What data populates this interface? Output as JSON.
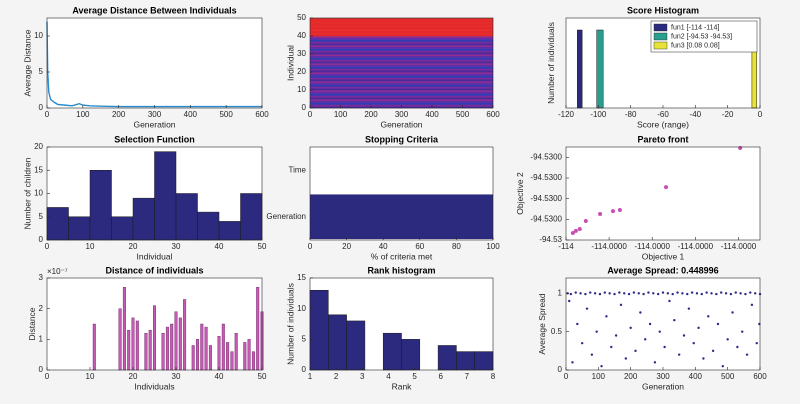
{
  "chart_data": [
    {
      "type": "line",
      "title": "Average Distance Between Individuals",
      "xlabel": "Generation",
      "ylabel": "Average Distance",
      "color": "#2a8ad0",
      "x": [
        0,
        2,
        5,
        10,
        20,
        30,
        50,
        70,
        90,
        100,
        120,
        150,
        200,
        300,
        400,
        500,
        600
      ],
      "values": [
        12,
        5,
        2.2,
        1.2,
        0.8,
        0.5,
        0.4,
        0.3,
        0.6,
        0.4,
        0.3,
        0.25,
        0.2,
        0.2,
        0.2,
        0.2,
        0.2
      ],
      "xlim": [
        0,
        600
      ],
      "xticks": [
        0,
        100,
        200,
        300,
        400,
        500,
        600
      ],
      "ylim": [
        0,
        12.5
      ],
      "yticks": [
        0,
        5,
        10
      ]
    },
    {
      "type": "heatmap",
      "xlabel": "Generation",
      "ylabel": "Individual",
      "bands": [
        {
          "range": [
            0,
            40
          ],
          "colors": [
            "#4b2a9e",
            "#7b2c9a",
            "#2f3db4",
            "#5a2fa8",
            "#8a2f96"
          ]
        },
        {
          "range": [
            40,
            50
          ],
          "colors": [
            "#e8262a",
            "#e2302c"
          ]
        }
      ],
      "xlim": [
        0,
        600
      ],
      "xticks": [
        0,
        100,
        200,
        300,
        400,
        500,
        600
      ],
      "ylim": [
        0,
        50
      ],
      "yticks": [
        0,
        10,
        20,
        30,
        40,
        50
      ]
    },
    {
      "type": "histogram",
      "title": "Score Histogram",
      "xlabel": "Score (range)",
      "ylabel": "Number of individuals",
      "legend": "northeast",
      "series": [
        {
          "name": "fun1 [-114  -114]",
          "color": "#2c2a7e",
          "bins": [
            -113,
            -110
          ],
          "values": [
            13
          ]
        },
        {
          "name": "fun2 [-94.53  -94.53]",
          "color": "#2a9d8f",
          "bins": [
            -101,
            -97
          ],
          "values": [
            13
          ]
        },
        {
          "name": "fun3 [0.08  0.08]",
          "color": "#e6e23a",
          "bins": [
            -5,
            -2
          ],
          "values": [
            13
          ]
        }
      ],
      "xlim": [
        -120,
        0
      ],
      "xticks": [
        -120,
        -100,
        -80,
        -60,
        -40,
        -20,
        0
      ],
      "ylim": [
        0,
        15
      ]
    },
    {
      "type": "histogram",
      "title": "Selection Function",
      "xlabel": "Individual",
      "ylabel": "Number of children",
      "series": [
        {
          "color": "#2c2a7e",
          "bins": [
            0,
            5,
            10,
            15,
            20,
            25,
            30,
            35,
            40,
            45,
            50
          ],
          "values": [
            7,
            5,
            15,
            5,
            9,
            19,
            10,
            6,
            4,
            10
          ]
        }
      ],
      "xlim": [
        0,
        50
      ],
      "xticks": [
        0,
        10,
        20,
        30,
        40,
        50
      ],
      "ylim": [
        0,
        20
      ],
      "yticks": [
        0,
        5,
        10,
        15,
        20
      ]
    },
    {
      "type": "barh",
      "title": "Stopping Criteria",
      "xlabel": "% of criteria met",
      "color": "#2c2a7e",
      "categories": [
        "Generation",
        "Time"
      ],
      "values": [
        100,
        0
      ],
      "xlim": [
        0,
        100
      ],
      "xticks": [
        0,
        20,
        40,
        60,
        80,
        100
      ]
    },
    {
      "type": "scatter",
      "title": "Pareto front",
      "xlabel": "Objective 1",
      "ylabel": "Objective 2",
      "color": "#c84fb3",
      "size": 2,
      "x": [
        -113.9999984,
        -113.9999977,
        -113.9999968,
        -113.9999954,
        -113.9999921,
        -113.9999891,
        -113.9999875,
        -113.9999768,
        -113.9999596
      ],
      "values": [
        -94.5299966,
        -94.5299956,
        -94.5299947,
        -94.5299908,
        -94.5299874,
        -94.529986,
        -94.5299855,
        -94.5299744,
        -94.5299555
      ],
      "xlim": [
        -114,
        -113.999955
      ],
      "xticks": [
        -114,
        {
          "value": -113.99999,
          "label": "-114.0000"
        },
        {
          "value": -113.99998,
          "label": "-114.0000"
        },
        {
          "value": -113.99997,
          "label": "-114.0000"
        },
        {
          "value": -113.99996,
          "label": "-114.0000"
        }
      ],
      "ylim": [
        -94.53,
        -94.529955
      ],
      "yticks": [
        -94.53,
        {
          "value": -94.52999,
          "label": "-94.5300"
        },
        {
          "value": -94.52998,
          "label": "-94.5300"
        },
        {
          "value": -94.52997,
          "label": "-94.5300"
        },
        {
          "value": -94.52996,
          "label": "-94.5300"
        }
      ]
    },
    {
      "type": "bar",
      "title": "Distance of individuals",
      "xlabel": "Individuals",
      "ylabel": "Distance",
      "y_exponent_label": "×10⁻⁷",
      "color": "#c45ab3",
      "x": [
        11,
        17,
        18,
        19,
        20,
        21,
        23,
        24,
        25,
        27,
        28,
        29,
        30,
        31,
        32,
        34,
        35,
        36,
        37,
        38,
        40,
        41,
        42,
        43,
        44,
        46,
        47,
        48,
        49,
        50
      ],
      "values": [
        1.5e-07,
        2e-07,
        2.7e-07,
        1.3e-07,
        1.7e-07,
        1.6e-07,
        1.2e-07,
        1.3e-07,
        2.1e-07,
        1.2e-07,
        1.4e-07,
        1.5e-07,
        1.9e-07,
        1.7e-07,
        2.3e-07,
        8e-08,
        1e-07,
        1.5e-07,
        1.4e-07,
        8e-08,
        1.1e-07,
        1.5e-07,
        9e-08,
        6e-08,
        1.2e-07,
        9e-08,
        1e-07,
        6e-08,
        2.7e-07,
        1.9e-07
      ],
      "xlim": [
        0,
        50
      ],
      "xticks": [
        0,
        10,
        20,
        30,
        40,
        50
      ],
      "ylim": [
        0,
        3e-07
      ],
      "yticks": [
        0,
        {
          "value": 1e-07,
          "label": "1"
        },
        {
          "value": 2e-07,
          "label": "2"
        },
        {
          "value": 3e-07,
          "label": "3"
        }
      ]
    },
    {
      "type": "histogram",
      "title": "Rank histogram",
      "xlabel": "Rank",
      "ylabel": "Number of individuals",
      "series": [
        {
          "color": "#2c2a7e",
          "bins": [
            1,
            1.7,
            2.4,
            3.1,
            3.8,
            4.5,
            5.2,
            5.9,
            6.6,
            7.3,
            8
          ],
          "values": [
            13,
            9,
            8,
            0,
            6,
            5,
            0,
            4,
            3,
            3
          ]
        }
      ],
      "xlim": [
        1,
        8
      ],
      "xticks": [
        1,
        2,
        3,
        4,
        5,
        6,
        7,
        8
      ],
      "ylim": [
        0,
        15
      ],
      "yticks": [
        0,
        5,
        10,
        15
      ]
    },
    {
      "type": "scatter",
      "title": "Average Spread: 0.448996",
      "xlabel": "Generation",
      "ylabel": "Average Spread",
      "color": "#2b2a8a",
      "size": 1.2,
      "x": [
        5,
        15,
        30,
        45,
        60,
        75,
        90,
        105,
        120,
        135,
        150,
        165,
        180,
        195,
        210,
        225,
        240,
        255,
        270,
        285,
        300,
        315,
        330,
        345,
        360,
        375,
        390,
        405,
        420,
        435,
        450,
        465,
        480,
        495,
        510,
        525,
        540,
        555,
        570,
        585,
        600,
        10,
        20,
        35,
        50,
        65,
        80,
        95,
        110,
        125,
        140,
        155,
        170,
        185,
        200,
        215,
        230,
        245,
        260,
        275,
        290,
        305,
        320,
        335,
        350,
        365,
        380,
        395,
        410,
        425,
        440,
        455,
        470,
        485,
        500,
        515,
        530,
        545,
        560,
        575,
        590,
        598
      ],
      "values": [
        1.0,
        0.99,
        1.01,
        1.0,
        0.99,
        1.01,
        1.0,
        0.99,
        1.01,
        1.0,
        0.99,
        1.01,
        1.0,
        0.99,
        1.01,
        1.0,
        0.99,
        1.01,
        1.0,
        0.99,
        1.01,
        1.0,
        0.99,
        1.01,
        1.0,
        0.99,
        1.01,
        1.0,
        0.99,
        1.01,
        1.0,
        0.99,
        1.01,
        1.0,
        0.99,
        1.01,
        1.0,
        0.99,
        1.01,
        1.0,
        0.99,
        0.9,
        0.1,
        0.6,
        0.35,
        0.8,
        0.2,
        0.5,
        0.05,
        0.7,
        0.3,
        0.45,
        0.85,
        0.15,
        0.55,
        0.25,
        0.75,
        0.4,
        0.6,
        0.1,
        0.5,
        0.3,
        0.9,
        0.65,
        0.2,
        0.45,
        0.8,
        0.35,
        0.55,
        0.15,
        0.7,
        0.25,
        0.6,
        0.05,
        0.4,
        0.75,
        0.3,
        0.5,
        0.2,
        0.85,
        0.35,
        0.6
      ],
      "xlim": [
        0,
        600
      ],
      "xticks": [
        0,
        100,
        200,
        300,
        400,
        500,
        600
      ],
      "ylim": [
        0,
        1.2
      ],
      "yticks": [
        0,
        0.5,
        1
      ]
    }
  ]
}
